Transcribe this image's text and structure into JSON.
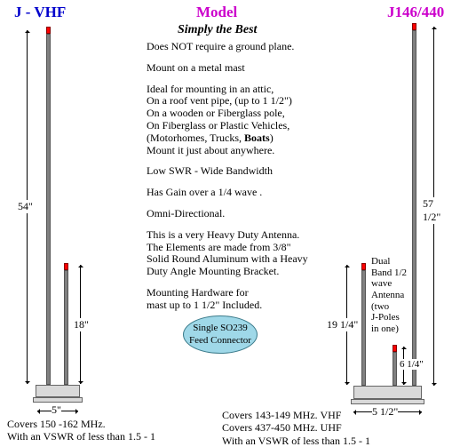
{
  "titles": {
    "left": "J - VHF",
    "center": "Model",
    "right": "J146/440",
    "tagline": "Simply the Best",
    "left_color": "#0000cc",
    "center_color": "#cc00cc",
    "right_color": "#cc00cc"
  },
  "description": {
    "p1": "Does NOT require a ground plane.",
    "p2": "Mount on a metal mast",
    "p3": "Ideal for mounting in an attic,\nOn a roof vent pipe, (up to 1 1/2\")\nOn a wooden or Fiberglass pole,\nOn Fiberglass or Plastic Vehicles,\n(Motorhomes, Trucks,  Boats)\nMount it just about anywhere.",
    "p4": "Low SWR - Wide Bandwidth",
    "p5": "Has Gain over a 1/4 wave .",
    "p6": "Omni-Directional.",
    "p7": "This is a very  Heavy Duty Antenna.\nThe Elements are made from 3/8\"\nSolid Round  Aluminum with a Heavy\nDuty  Angle Mounting Bracket.",
    "p8": "Mounting  Hardware for\nmast up to 1 1/2\" Included."
  },
  "oval": {
    "text": "Single SO239\nFeed  Connector",
    "bg": "#9fd8e8",
    "border": "#3a7a8a"
  },
  "left_ant": {
    "h_main": "54\"",
    "h_stub": "18\"",
    "w": "5\""
  },
  "right_ant": {
    "h_main": "57 1/2\"",
    "h_mid": "19 1/4\"",
    "h_short": "6 1/4\"",
    "w": "5  1/2\""
  },
  "dual_label": "Dual\nBand 1/2\nwave\nAntenna\n(two\nJ-Poles\nin one)",
  "specs": {
    "left": "Covers 150 -162 MHz.\nWith an VSWR of less than 1.5 - 1",
    "right": "Covers 143-149 MHz. VHF\nCovers 437-450 MHz. UHF\nWith an VSWR of less than 1.5 - 1"
  }
}
